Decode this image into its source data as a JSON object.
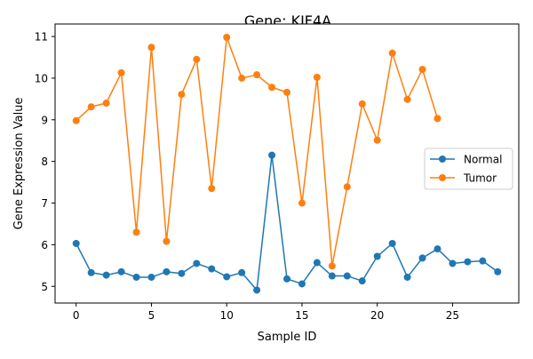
{
  "chart_data": {
    "type": "line",
    "title": "Gene: KIF4A",
    "xlabel": "Sample ID",
    "ylabel": "Gene Expression Value",
    "xlim": [
      -1.4,
      29.4
    ],
    "ylim": [
      4.6,
      11.3
    ],
    "xticks": [
      0,
      5,
      10,
      15,
      20,
      25
    ],
    "yticks": [
      5,
      6,
      7,
      8,
      9,
      10,
      11
    ],
    "grid": false,
    "legend_position": "center-right",
    "series": [
      {
        "name": "Normal",
        "color": "#1f77b4",
        "marker": "circle",
        "x": [
          0,
          1,
          2,
          3,
          4,
          5,
          6,
          7,
          8,
          9,
          10,
          11,
          12,
          13,
          14,
          15,
          16,
          17,
          18,
          19,
          20,
          21,
          22,
          23,
          24,
          25,
          26,
          27,
          28
        ],
        "y": [
          6.03,
          5.33,
          5.27,
          5.35,
          5.22,
          5.22,
          5.35,
          5.31,
          5.55,
          5.42,
          5.23,
          5.33,
          4.91,
          8.15,
          5.18,
          5.06,
          5.57,
          5.25,
          5.25,
          5.13,
          5.72,
          6.03,
          5.22,
          5.68,
          5.9,
          5.55,
          5.59,
          5.61,
          5.35
        ]
      },
      {
        "name": "Tumor",
        "color": "#ff7f0e",
        "marker": "circle",
        "x": [
          0,
          1,
          2,
          3,
          4,
          5,
          6,
          7,
          8,
          9,
          10,
          11,
          12,
          13,
          14,
          15,
          16,
          17,
          18,
          19,
          20,
          21,
          22,
          23,
          24
        ],
        "y": [
          8.98,
          9.31,
          9.4,
          10.13,
          6.3,
          10.74,
          6.08,
          9.61,
          10.45,
          7.35,
          10.98,
          10.0,
          10.08,
          9.78,
          9.66,
          7.0,
          10.02,
          5.49,
          7.39,
          9.38,
          8.51,
          10.6,
          9.49,
          10.21,
          9.03
        ]
      }
    ]
  }
}
